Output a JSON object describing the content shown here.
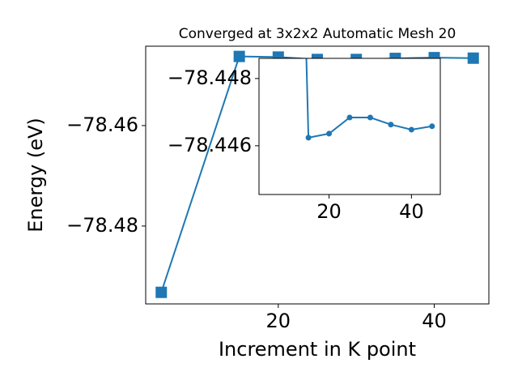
{
  "chart_data": {
    "type": "line",
    "title": "Converged at 3x2x2 Automatic Mesh 20",
    "xlabel": "Increment in K point",
    "ylabel": "Energy (eV)",
    "x": [
      5,
      15,
      20,
      25,
      30,
      35,
      40,
      45
    ],
    "series": [
      {
        "color": "#1f77b4",
        "marker": "square",
        "values": [
          -78.4932,
          -78.44624,
          -78.44636,
          -78.44684,
          -78.44684,
          -78.44663,
          -78.44648,
          -78.44658
        ]
      }
    ],
    "xlim": [
      3,
      47
    ],
    "xticks": [
      20,
      40
    ],
    "ylim": [
      -78.4955,
      -78.4442
    ],
    "yticks": [
      {
        "value": -78.48,
        "label": "−78.48"
      },
      {
        "value": -78.46,
        "label": "−78.46"
      }
    ],
    "inset": {
      "marker": "circle",
      "xlim": [
        3,
        47
      ],
      "xticks": [
        20,
        40
      ],
      "ylim": [
        -78.44455,
        -78.4486
      ],
      "yticks": [
        {
          "value": -78.448,
          "label": "−78.448"
        },
        {
          "value": -78.446,
          "label": "−78.446"
        }
      ]
    }
  }
}
